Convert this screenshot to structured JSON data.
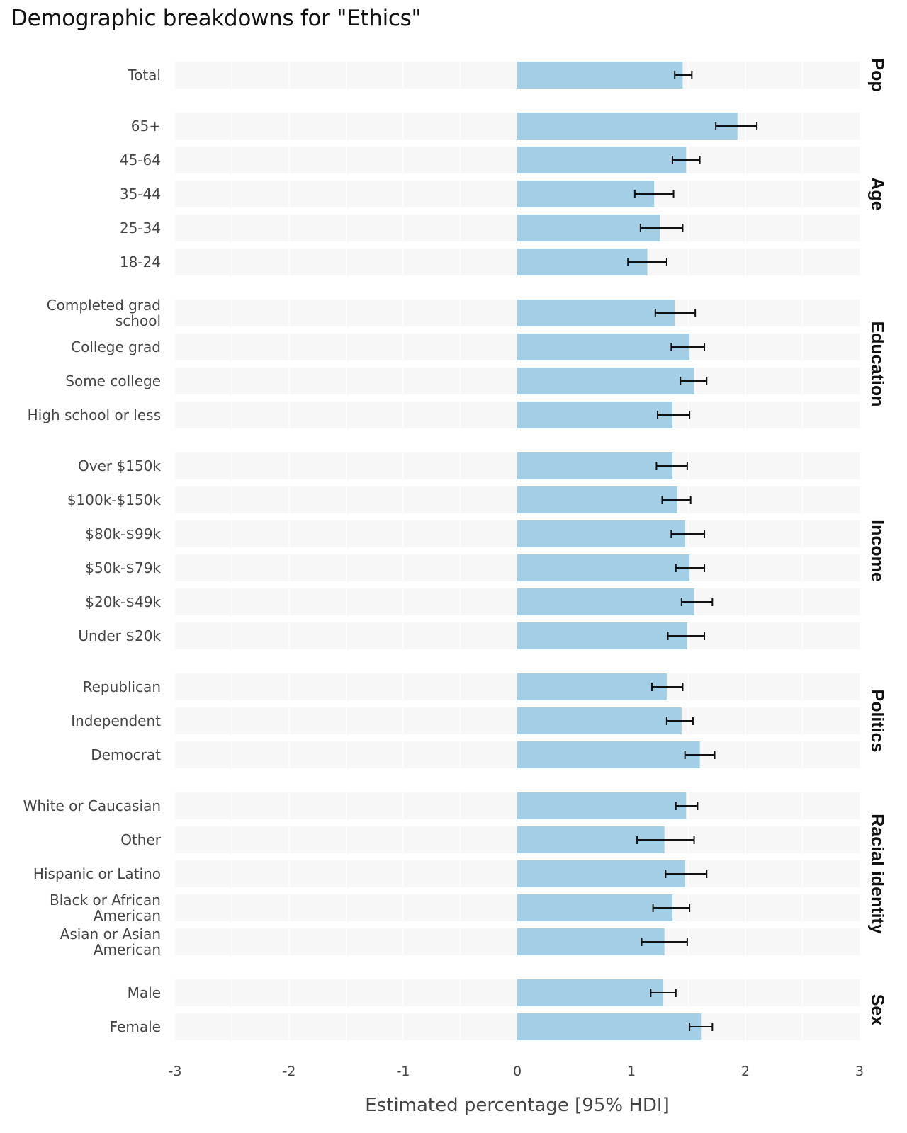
{
  "chart_data": {
    "type": "bar",
    "orientation": "horizontal",
    "title": "Demographic breakdowns for \"Ethics\"",
    "xlabel": "Estimated percentage [95% HDI]",
    "ylabel": "",
    "xlim": [
      -3,
      3
    ],
    "xticks": [
      -3,
      -2,
      -1,
      0,
      1,
      2,
      3
    ],
    "xtick_labels": [
      "-3",
      "-2",
      "-1",
      "0",
      "1",
      "2",
      "3"
    ],
    "grid": true,
    "legend": "none",
    "colors": {
      "bar": "#a3cfe6",
      "panel": "#f7f7f7",
      "gridline": "#ffffff",
      "errorbar": "#111111"
    },
    "groups": [
      {
        "name": "Pop",
        "rows": [
          {
            "label": "Total",
            "value": 1.45,
            "low": 1.38,
            "high": 1.53
          }
        ]
      },
      {
        "name": "Age",
        "rows": [
          {
            "label": "65+",
            "value": 1.93,
            "low": 1.74,
            "high": 2.1
          },
          {
            "label": "45-64",
            "value": 1.48,
            "low": 1.36,
            "high": 1.6
          },
          {
            "label": "35-44",
            "value": 1.2,
            "low": 1.03,
            "high": 1.37
          },
          {
            "label": "25-34",
            "value": 1.25,
            "low": 1.08,
            "high": 1.45
          },
          {
            "label": "18-24",
            "value": 1.14,
            "low": 0.97,
            "high": 1.31
          }
        ]
      },
      {
        "name": "Education",
        "rows": [
          {
            "label": "Completed grad school",
            "lines": [
              "Completed grad",
              "school"
            ],
            "value": 1.38,
            "low": 1.21,
            "high": 1.56
          },
          {
            "label": "College grad",
            "value": 1.51,
            "low": 1.35,
            "high": 1.64
          },
          {
            "label": "Some college",
            "value": 1.55,
            "low": 1.43,
            "high": 1.66
          },
          {
            "label": "High school or less",
            "value": 1.36,
            "low": 1.23,
            "high": 1.51
          }
        ]
      },
      {
        "name": "Income",
        "rows": [
          {
            "label": "Over $150k",
            "value": 1.36,
            "low": 1.22,
            "high": 1.49
          },
          {
            "label": "$100k-$150k",
            "value": 1.4,
            "low": 1.27,
            "high": 1.52
          },
          {
            "label": "$80k-$99k",
            "value": 1.47,
            "low": 1.35,
            "high": 1.64
          },
          {
            "label": "$50k-$79k",
            "value": 1.51,
            "low": 1.39,
            "high": 1.64
          },
          {
            "label": "$20k-$49k",
            "value": 1.55,
            "low": 1.44,
            "high": 1.71
          },
          {
            "label": "Under $20k",
            "value": 1.49,
            "low": 1.32,
            "high": 1.64
          }
        ]
      },
      {
        "name": "Politics",
        "rows": [
          {
            "label": "Republican",
            "value": 1.31,
            "low": 1.18,
            "high": 1.45
          },
          {
            "label": "Independent",
            "value": 1.44,
            "low": 1.31,
            "high": 1.54
          },
          {
            "label": "Democrat",
            "value": 1.6,
            "low": 1.47,
            "high": 1.73
          }
        ]
      },
      {
        "name": "Racial identity",
        "rows": [
          {
            "label": "White or Caucasian",
            "value": 1.48,
            "low": 1.39,
            "high": 1.58
          },
          {
            "label": "Other",
            "value": 1.29,
            "low": 1.05,
            "high": 1.55
          },
          {
            "label": "Hispanic or Latino",
            "value": 1.47,
            "low": 1.3,
            "high": 1.66
          },
          {
            "label": "Black or African American",
            "lines": [
              "Black or African",
              "American"
            ],
            "value": 1.36,
            "low": 1.19,
            "high": 1.51
          },
          {
            "label": "Asian or Asian American",
            "lines": [
              "Asian or Asian",
              "American"
            ],
            "value": 1.29,
            "low": 1.09,
            "high": 1.49
          }
        ]
      },
      {
        "name": "Sex",
        "rows": [
          {
            "label": "Male",
            "value": 1.28,
            "low": 1.17,
            "high": 1.39
          },
          {
            "label": "Female",
            "value": 1.61,
            "low": 1.51,
            "high": 1.71
          }
        ]
      }
    ]
  }
}
